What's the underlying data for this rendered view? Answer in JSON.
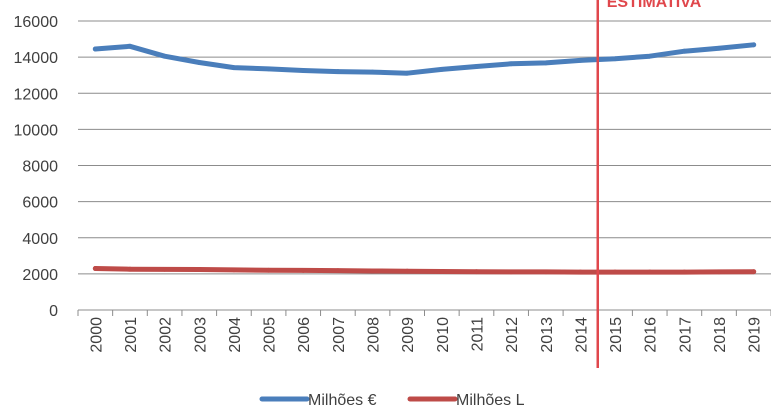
{
  "chart_data": {
    "type": "line",
    "title": "",
    "xlabel": "",
    "ylabel": "",
    "categories": [
      "2000",
      "2001",
      "2002",
      "2003",
      "2004",
      "2005",
      "2006",
      "2007",
      "2008",
      "2009",
      "2010",
      "2011",
      "2012",
      "2013",
      "2014",
      "2015",
      "2016",
      "2017",
      "2018",
      "2019"
    ],
    "ylim": [
      0,
      16000
    ],
    "yticks": [
      0,
      2000,
      4000,
      6000,
      8000,
      10000,
      12000,
      14000,
      16000
    ],
    "grid": true,
    "legend_position": "bottom",
    "series": [
      {
        "name": "Milhões €",
        "color": "#4a7ebb",
        "values": [
          14450,
          14600,
          14050,
          13700,
          13420,
          13350,
          13260,
          13200,
          13170,
          13110,
          13320,
          13480,
          13630,
          13680,
          13820,
          13910,
          14050,
          14330,
          14490,
          14680
        ]
      },
      {
        "name": "Milhões L",
        "color": "#be4b48",
        "values": [
          2300,
          2260,
          2250,
          2240,
          2220,
          2200,
          2190,
          2180,
          2160,
          2150,
          2130,
          2120,
          2110,
          2110,
          2100,
          2100,
          2100,
          2100,
          2110,
          2120
        ]
      }
    ],
    "annotation": {
      "label": "ESTIMATIVA",
      "between": [
        "2014",
        "2015"
      ],
      "color": "#e0474c"
    }
  }
}
